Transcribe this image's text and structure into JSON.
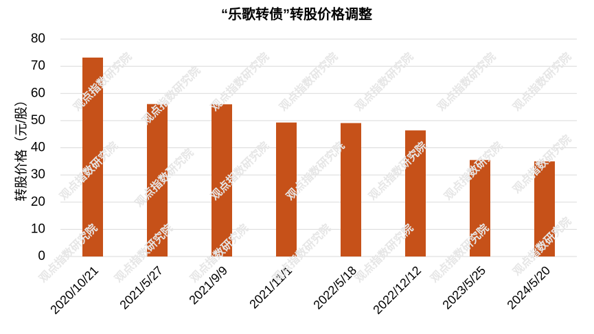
{
  "chart_data": {
    "type": "bar",
    "title": "“乐歌转债”转股价格调整",
    "y_label": "转股价格（元/股）",
    "watermark": "观点指数研究院",
    "categories": [
      "2020/10/21",
      "2021/5/27",
      "2021/9/9",
      "2021/11/1",
      "2022/5/18",
      "2022/12/12",
      "2023/5/25",
      "2024/5/20"
    ],
    "values": [
      73.2,
      56.1,
      56.0,
      49.3,
      49.1,
      46.4,
      35.5,
      35.0
    ],
    "color": "#c65119",
    "ylim": [
      0,
      80
    ],
    "yticks": [
      0,
      10,
      20,
      30,
      40,
      50,
      60,
      70,
      80
    ],
    "grid": true
  }
}
